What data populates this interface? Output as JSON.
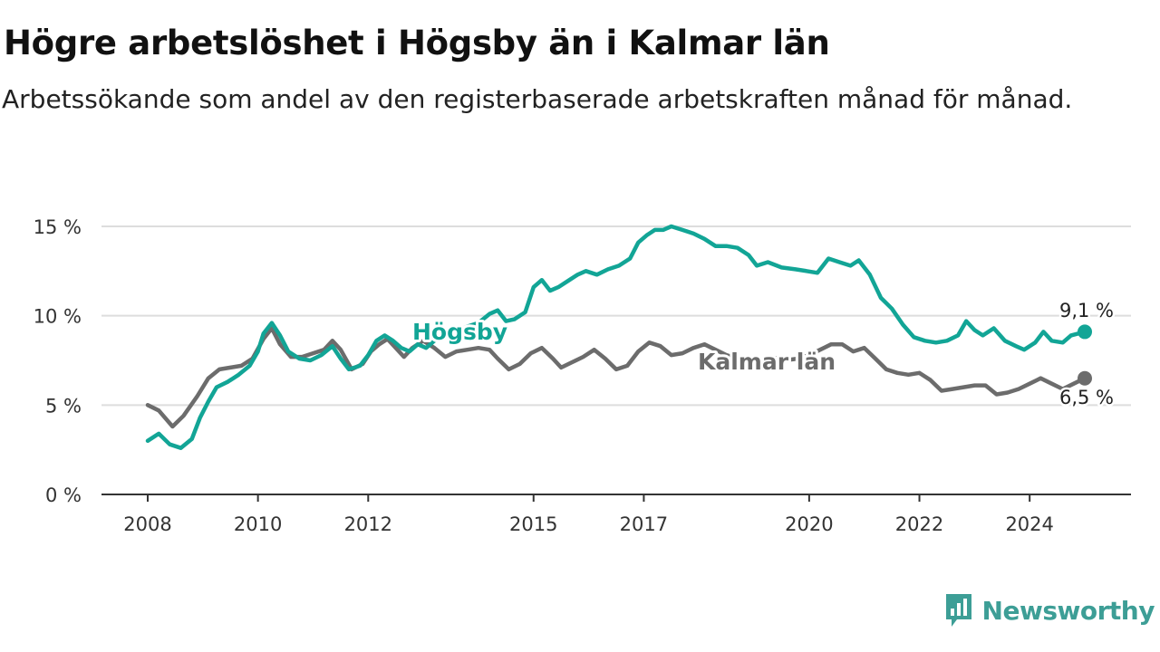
{
  "title": "Högre arbetslöshet i Högsby än i Kalmar län",
  "subtitle": "Arbetssökande som andel av den registerbaserade arbetskraften månad för månad.",
  "brand": {
    "name": "Newsworthy"
  },
  "colors": {
    "hogsby": "#12a596",
    "kalmar": "#6c6c6c",
    "grid": "#dddddd",
    "axis": "#333333"
  },
  "chart_data": {
    "type": "line",
    "title": "Högre arbetslöshet i Högsby än i Kalmar län",
    "subtitle": "Arbetssökande som andel av den registerbaserade arbetskraften månad för månad.",
    "xlabel": "",
    "ylabel": "",
    "x_ticks": [
      "2008",
      "2010",
      "2012",
      "2015",
      "2017",
      "2020",
      "2022",
      "2024"
    ],
    "y_ticks": [
      "0 %",
      "5 %",
      "10 %",
      "15 %"
    ],
    "xlim": [
      2008,
      2025
    ],
    "ylim": [
      0,
      15
    ],
    "grid": "horizontal",
    "legend": "direct labels on lines",
    "series": [
      {
        "name": "Högsby",
        "end_label": "9,1 %",
        "points": [
          [
            2008.0,
            3.0
          ],
          [
            2008.2,
            3.4
          ],
          [
            2008.4,
            2.8
          ],
          [
            2008.6,
            2.6
          ],
          [
            2008.8,
            3.1
          ],
          [
            2008.95,
            4.3
          ],
          [
            2009.1,
            5.2
          ],
          [
            2009.25,
            6.0
          ],
          [
            2009.45,
            6.3
          ],
          [
            2009.65,
            6.7
          ],
          [
            2009.85,
            7.2
          ],
          [
            2010.0,
            8.0
          ],
          [
            2010.1,
            9.0
          ],
          [
            2010.25,
            9.6
          ],
          [
            2010.4,
            8.9
          ],
          [
            2010.55,
            8.0
          ],
          [
            2010.75,
            7.6
          ],
          [
            2010.95,
            7.5
          ],
          [
            2011.15,
            7.8
          ],
          [
            2011.35,
            8.3
          ],
          [
            2011.5,
            7.6
          ],
          [
            2011.65,
            7.0
          ],
          [
            2011.85,
            7.2
          ],
          [
            2012.0,
            7.8
          ],
          [
            2012.15,
            8.6
          ],
          [
            2012.3,
            8.9
          ],
          [
            2012.45,
            8.6
          ],
          [
            2012.6,
            8.2
          ],
          [
            2012.75,
            8.0
          ],
          [
            2012.9,
            8.4
          ],
          [
            2013.05,
            8.2
          ],
          [
            2013.2,
            8.6
          ],
          [
            2013.4,
            8.9
          ],
          [
            2013.6,
            9.1
          ],
          [
            2013.8,
            9.4
          ],
          [
            2014.0,
            9.6
          ],
          [
            2014.2,
            10.1
          ],
          [
            2014.35,
            10.3
          ],
          [
            2014.5,
            9.7
          ],
          [
            2014.65,
            9.8
          ],
          [
            2014.85,
            10.2
          ],
          [
            2015.0,
            11.6
          ],
          [
            2015.15,
            12.0
          ],
          [
            2015.3,
            11.4
          ],
          [
            2015.45,
            11.6
          ],
          [
            2015.65,
            12.0
          ],
          [
            2015.8,
            12.3
          ],
          [
            2015.95,
            12.5
          ],
          [
            2016.15,
            12.3
          ],
          [
            2016.35,
            12.6
          ],
          [
            2016.55,
            12.8
          ],
          [
            2016.75,
            13.2
          ],
          [
            2016.9,
            14.1
          ],
          [
            2017.05,
            14.5
          ],
          [
            2017.2,
            14.8
          ],
          [
            2017.35,
            14.8
          ],
          [
            2017.5,
            15.0
          ],
          [
            2017.7,
            14.8
          ],
          [
            2017.9,
            14.6
          ],
          [
            2018.1,
            14.3
          ],
          [
            2018.3,
            13.9
          ],
          [
            2018.5,
            13.9
          ],
          [
            2018.7,
            13.8
          ],
          [
            2018.9,
            13.4
          ],
          [
            2019.05,
            12.8
          ],
          [
            2019.25,
            13.0
          ],
          [
            2019.5,
            12.7
          ],
          [
            2019.75,
            12.6
          ],
          [
            2019.95,
            12.5
          ],
          [
            2020.15,
            12.4
          ],
          [
            2020.35,
            13.2
          ],
          [
            2020.55,
            13.0
          ],
          [
            2020.75,
            12.8
          ],
          [
            2020.9,
            13.1
          ],
          [
            2021.1,
            12.3
          ],
          [
            2021.3,
            11.0
          ],
          [
            2021.5,
            10.4
          ],
          [
            2021.7,
            9.5
          ],
          [
            2021.9,
            8.8
          ],
          [
            2022.1,
            8.6
          ],
          [
            2022.3,
            8.5
          ],
          [
            2022.5,
            8.6
          ],
          [
            2022.7,
            8.9
          ],
          [
            2022.85,
            9.7
          ],
          [
            2023.0,
            9.2
          ],
          [
            2023.15,
            8.9
          ],
          [
            2023.35,
            9.3
          ],
          [
            2023.55,
            8.6
          ],
          [
            2023.75,
            8.3
          ],
          [
            2023.9,
            8.1
          ],
          [
            2024.1,
            8.5
          ],
          [
            2024.25,
            9.1
          ],
          [
            2024.4,
            8.6
          ],
          [
            2024.6,
            8.5
          ],
          [
            2024.75,
            8.9
          ],
          [
            2025.0,
            9.1
          ]
        ]
      },
      {
        "name": "Kalmar län",
        "end_label": "6,5 %",
        "points": [
          [
            2008.0,
            5.0
          ],
          [
            2008.2,
            4.7
          ],
          [
            2008.45,
            3.8
          ],
          [
            2008.65,
            4.4
          ],
          [
            2008.9,
            5.5
          ],
          [
            2009.1,
            6.5
          ],
          [
            2009.3,
            7.0
          ],
          [
            2009.5,
            7.1
          ],
          [
            2009.7,
            7.2
          ],
          [
            2009.9,
            7.6
          ],
          [
            2010.1,
            8.7
          ],
          [
            2010.25,
            9.3
          ],
          [
            2010.4,
            8.4
          ],
          [
            2010.6,
            7.7
          ],
          [
            2010.8,
            7.7
          ],
          [
            2011.0,
            7.9
          ],
          [
            2011.2,
            8.1
          ],
          [
            2011.35,
            8.6
          ],
          [
            2011.5,
            8.1
          ],
          [
            2011.7,
            7.0
          ],
          [
            2011.9,
            7.3
          ],
          [
            2012.05,
            8.0
          ],
          [
            2012.2,
            8.4
          ],
          [
            2012.35,
            8.7
          ],
          [
            2012.5,
            8.2
          ],
          [
            2012.65,
            7.7
          ],
          [
            2012.8,
            8.2
          ],
          [
            2013.0,
            8.6
          ],
          [
            2013.2,
            8.2
          ],
          [
            2013.4,
            7.7
          ],
          [
            2013.6,
            8.0
          ],
          [
            2013.8,
            8.1
          ],
          [
            2014.0,
            8.2
          ],
          [
            2014.2,
            8.1
          ],
          [
            2014.35,
            7.6
          ],
          [
            2014.55,
            7.0
          ],
          [
            2014.75,
            7.3
          ],
          [
            2014.95,
            7.9
          ],
          [
            2015.15,
            8.2
          ],
          [
            2015.35,
            7.6
          ],
          [
            2015.5,
            7.1
          ],
          [
            2015.7,
            7.4
          ],
          [
            2015.9,
            7.7
          ],
          [
            2016.1,
            8.1
          ],
          [
            2016.3,
            7.6
          ],
          [
            2016.5,
            7.0
          ],
          [
            2016.7,
            7.2
          ],
          [
            2016.9,
            8.0
          ],
          [
            2017.1,
            8.5
          ],
          [
            2017.3,
            8.3
          ],
          [
            2017.5,
            7.8
          ],
          [
            2017.7,
            7.9
          ],
          [
            2017.9,
            8.2
          ],
          [
            2018.1,
            8.4
          ],
          [
            2018.3,
            8.1
          ],
          [
            2018.5,
            7.8
          ],
          [
            2018.7,
            7.6
          ],
          [
            2018.9,
            7.7
          ],
          [
            2019.1,
            7.4
          ],
          [
            2019.3,
            7.7
          ],
          [
            2019.55,
            7.5
          ],
          [
            2019.8,
            7.6
          ],
          [
            2020.0,
            7.8
          ],
          [
            2020.2,
            8.1
          ],
          [
            2020.4,
            8.4
          ],
          [
            2020.6,
            8.4
          ],
          [
            2020.8,
            8.0
          ],
          [
            2021.0,
            8.2
          ],
          [
            2021.2,
            7.6
          ],
          [
            2021.4,
            7.0
          ],
          [
            2021.6,
            6.8
          ],
          [
            2021.8,
            6.7
          ],
          [
            2022.0,
            6.8
          ],
          [
            2022.2,
            6.4
          ],
          [
            2022.4,
            5.8
          ],
          [
            2022.6,
            5.9
          ],
          [
            2022.8,
            6.0
          ],
          [
            2023.0,
            6.1
          ],
          [
            2023.2,
            6.1
          ],
          [
            2023.4,
            5.6
          ],
          [
            2023.6,
            5.7
          ],
          [
            2023.8,
            5.9
          ],
          [
            2024.0,
            6.2
          ],
          [
            2024.2,
            6.5
          ],
          [
            2024.4,
            6.2
          ],
          [
            2024.6,
            5.9
          ],
          [
            2024.8,
            6.2
          ],
          [
            2025.0,
            6.5
          ]
        ]
      }
    ]
  }
}
